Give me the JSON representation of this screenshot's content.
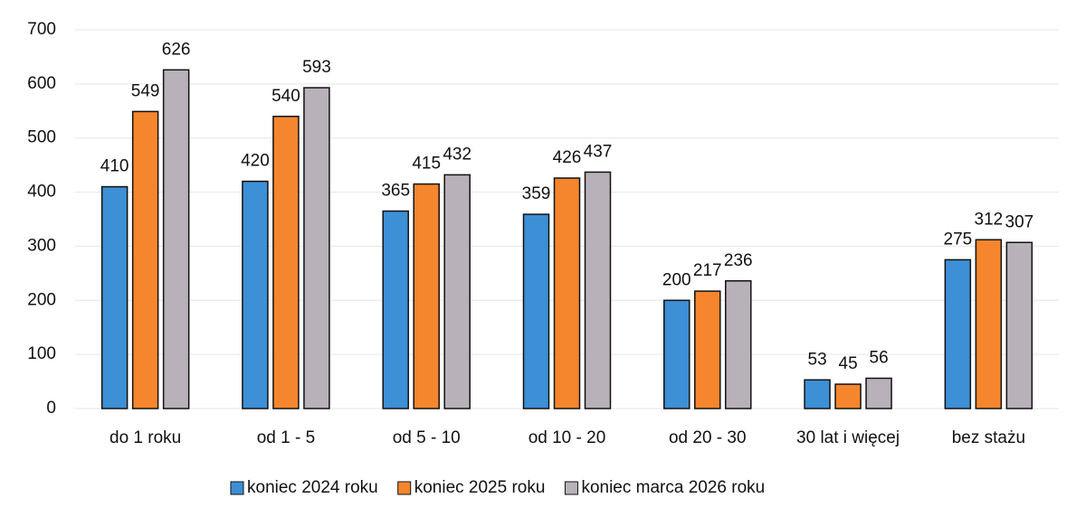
{
  "chart_data": {
    "type": "bar",
    "categories": [
      "do 1 roku",
      "od 1 - 5",
      "od 5 - 10",
      "od 10 - 20",
      "od 20 - 30",
      "30 lat i więcej",
      "bez stażu"
    ],
    "series": [
      {
        "name": "koniec 2024 roku",
        "color": "#3d8fd6",
        "values": [
          410,
          420,
          365,
          359,
          200,
          53,
          275
        ]
      },
      {
        "name": "koniec 2025 roku",
        "color": "#f5862d",
        "values": [
          549,
          540,
          415,
          426,
          217,
          45,
          312
        ]
      },
      {
        "name": "koniec marca 2026 roku",
        "color": "#b9b1ba",
        "values": [
          626,
          593,
          432,
          437,
          236,
          56,
          307
        ]
      }
    ],
    "ylim": [
      0,
      700
    ],
    "yticks": [
      0,
      100,
      200,
      300,
      400,
      500,
      600,
      700
    ],
    "grid": true,
    "legend": "bottom"
  }
}
